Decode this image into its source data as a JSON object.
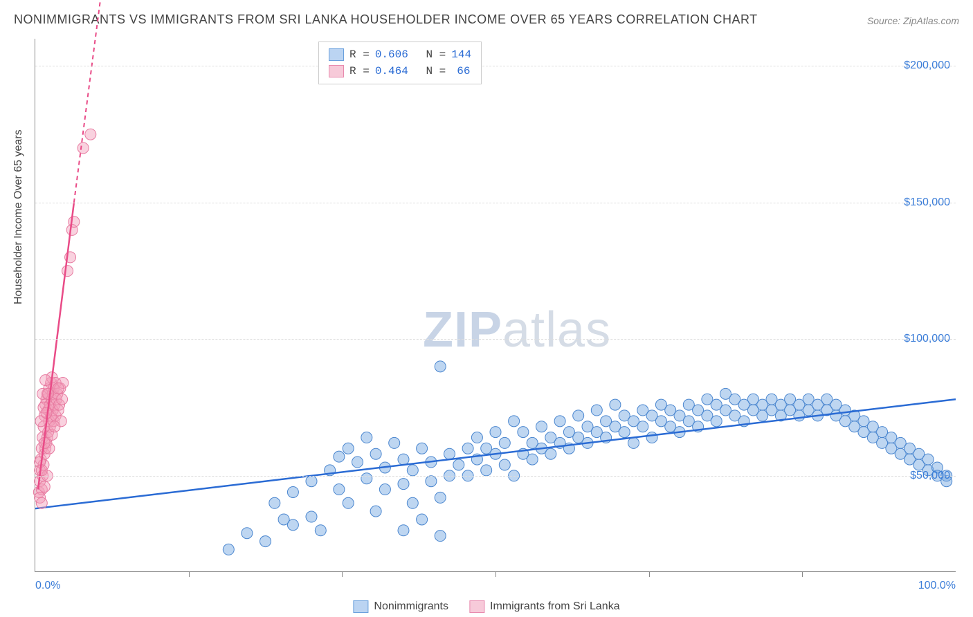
{
  "title": "NONIMMIGRANTS VS IMMIGRANTS FROM SRI LANKA HOUSEHOLDER INCOME OVER 65 YEARS CORRELATION CHART",
  "source": "Source: ZipAtlas.com",
  "watermark_a": "ZIP",
  "watermark_b": "atlas",
  "ylabel": "Householder Income Over 65 years",
  "chart": {
    "type": "scatter",
    "xlim": [
      0,
      100
    ],
    "ylim": [
      15000,
      210000
    ],
    "x_ticks": [
      0,
      100
    ],
    "x_tick_labels": [
      "0.0%",
      "100.0%"
    ],
    "x_minor_ticks": [
      16.67,
      33.33,
      50,
      66.67,
      83.33
    ],
    "y_ticks": [
      50000,
      100000,
      150000,
      200000
    ],
    "y_tick_labels": [
      "$50,000",
      "$100,000",
      "$150,000",
      "$200,000"
    ],
    "background_color": "#ffffff",
    "grid_color": "#dddddd",
    "axis_color": "#888888",
    "marker_radius": 8,
    "marker_alpha": 0.45,
    "series": [
      {
        "name": "Nonimmigrants",
        "color": "#6fa3e0",
        "stroke": "#4a86cf",
        "line_color": "#2a6bd4",
        "line_dash": "none",
        "R": "0.606",
        "N": "144",
        "trend": {
          "x1": 0,
          "y1": 38000,
          "x2": 100,
          "y2": 78000
        },
        "points": [
          [
            21,
            23000
          ],
          [
            23,
            29000
          ],
          [
            25,
            26000
          ],
          [
            26,
            40000
          ],
          [
            27,
            34000
          ],
          [
            28,
            32000
          ],
          [
            28,
            44000
          ],
          [
            30,
            35000
          ],
          [
            30,
            48000
          ],
          [
            31,
            30000
          ],
          [
            32,
            52000
          ],
          [
            33,
            45000
          ],
          [
            33,
            57000
          ],
          [
            34,
            40000
          ],
          [
            34,
            60000
          ],
          [
            35,
            55000
          ],
          [
            36,
            49000
          ],
          [
            36,
            64000
          ],
          [
            37,
            37000
          ],
          [
            37,
            58000
          ],
          [
            38,
            45000
          ],
          [
            38,
            53000
          ],
          [
            39,
            62000
          ],
          [
            40,
            30000
          ],
          [
            40,
            47000
          ],
          [
            40,
            56000
          ],
          [
            41,
            40000
          ],
          [
            41,
            52000
          ],
          [
            42,
            34000
          ],
          [
            42,
            60000
          ],
          [
            43,
            48000
          ],
          [
            43,
            55000
          ],
          [
            44,
            28000
          ],
          [
            44,
            42000
          ],
          [
            44,
            90000
          ],
          [
            45,
            50000
          ],
          [
            45,
            58000
          ],
          [
            46,
            54000
          ],
          [
            47,
            60000
          ],
          [
            47,
            50000
          ],
          [
            48,
            56000
          ],
          [
            48,
            64000
          ],
          [
            49,
            52000
          ],
          [
            49,
            60000
          ],
          [
            50,
            58000
          ],
          [
            50,
            66000
          ],
          [
            51,
            54000
          ],
          [
            51,
            62000
          ],
          [
            52,
            50000
          ],
          [
            52,
            70000
          ],
          [
            53,
            58000
          ],
          [
            53,
            66000
          ],
          [
            54,
            62000
          ],
          [
            54,
            56000
          ],
          [
            55,
            60000
          ],
          [
            55,
            68000
          ],
          [
            56,
            64000
          ],
          [
            56,
            58000
          ],
          [
            57,
            62000
          ],
          [
            57,
            70000
          ],
          [
            58,
            66000
          ],
          [
            58,
            60000
          ],
          [
            59,
            64000
          ],
          [
            59,
            72000
          ],
          [
            60,
            68000
          ],
          [
            60,
            62000
          ],
          [
            61,
            66000
          ],
          [
            61,
            74000
          ],
          [
            62,
            70000
          ],
          [
            62,
            64000
          ],
          [
            63,
            68000
          ],
          [
            63,
            76000
          ],
          [
            64,
            72000
          ],
          [
            64,
            66000
          ],
          [
            65,
            70000
          ],
          [
            65,
            62000
          ],
          [
            66,
            74000
          ],
          [
            66,
            68000
          ],
          [
            67,
            72000
          ],
          [
            67,
            64000
          ],
          [
            68,
            70000
          ],
          [
            68,
            76000
          ],
          [
            69,
            74000
          ],
          [
            69,
            68000
          ],
          [
            70,
            72000
          ],
          [
            70,
            66000
          ],
          [
            71,
            76000
          ],
          [
            71,
            70000
          ],
          [
            72,
            74000
          ],
          [
            72,
            68000
          ],
          [
            73,
            78000
          ],
          [
            73,
            72000
          ],
          [
            74,
            76000
          ],
          [
            74,
            70000
          ],
          [
            75,
            74000
          ],
          [
            75,
            80000
          ],
          [
            76,
            72000
          ],
          [
            76,
            78000
          ],
          [
            77,
            76000
          ],
          [
            77,
            70000
          ],
          [
            78,
            74000
          ],
          [
            78,
            78000
          ],
          [
            79,
            72000
          ],
          [
            79,
            76000
          ],
          [
            80,
            74000
          ],
          [
            80,
            78000
          ],
          [
            81,
            72000
          ],
          [
            81,
            76000
          ],
          [
            82,
            74000
          ],
          [
            82,
            78000
          ],
          [
            83,
            72000
          ],
          [
            83,
            76000
          ],
          [
            84,
            74000
          ],
          [
            84,
            78000
          ],
          [
            85,
            76000
          ],
          [
            85,
            72000
          ],
          [
            86,
            74000
          ],
          [
            86,
            78000
          ],
          [
            87,
            76000
          ],
          [
            87,
            72000
          ],
          [
            88,
            74000
          ],
          [
            88,
            70000
          ],
          [
            89,
            72000
          ],
          [
            89,
            68000
          ],
          [
            90,
            70000
          ],
          [
            90,
            66000
          ],
          [
            91,
            68000
          ],
          [
            91,
            64000
          ],
          [
            92,
            66000
          ],
          [
            92,
            62000
          ],
          [
            93,
            64000
          ],
          [
            93,
            60000
          ],
          [
            94,
            62000
          ],
          [
            94,
            58000
          ],
          [
            95,
            60000
          ],
          [
            95,
            56000
          ],
          [
            96,
            58000
          ],
          [
            96,
            54000
          ],
          [
            97,
            56000
          ],
          [
            97,
            52000
          ],
          [
            98,
            53000
          ],
          [
            98,
            50000
          ],
          [
            99,
            50000
          ],
          [
            99,
            48000
          ]
        ]
      },
      {
        "name": "Immigrants from Sri Lanka",
        "color": "#f29bb7",
        "stroke": "#e77aa0",
        "line_color": "#e94b87",
        "line_dash": "6,5",
        "R": "0.464",
        "N": "66",
        "trend_solid": {
          "x1": 0.3,
          "y1": 45000,
          "x2": 4.2,
          "y2": 150000
        },
        "trend_dash": {
          "x1": 4.2,
          "y1": 150000,
          "x2": 10,
          "y2": 300000
        },
        "points": [
          [
            0.4,
            44000
          ],
          [
            0.5,
            48000
          ],
          [
            0.5,
            52000
          ],
          [
            0.6,
            56000
          ],
          [
            0.7,
            60000
          ],
          [
            0.7,
            45000
          ],
          [
            0.8,
            64000
          ],
          [
            0.8,
            50000
          ],
          [
            0.9,
            68000
          ],
          [
            0.9,
            54000
          ],
          [
            1.0,
            72000
          ],
          [
            1.0,
            58000
          ],
          [
            1.1,
            76000
          ],
          [
            1.1,
            60000
          ],
          [
            1.2,
            78000
          ],
          [
            1.2,
            62000
          ],
          [
            1.3,
            80000
          ],
          [
            1.3,
            64000
          ],
          [
            1.4,
            74000
          ],
          [
            1.4,
            66000
          ],
          [
            1.5,
            70000
          ],
          [
            1.5,
            82000
          ],
          [
            1.6,
            76000
          ],
          [
            1.6,
            68000
          ],
          [
            1.7,
            84000
          ],
          [
            1.7,
            72000
          ],
          [
            1.8,
            78000
          ],
          [
            1.8,
            86000
          ],
          [
            1.9,
            74000
          ],
          [
            1.9,
            80000
          ],
          [
            2.0,
            70000
          ],
          [
            2.0,
            82000
          ],
          [
            2.1,
            76000
          ],
          [
            2.2,
            84000
          ],
          [
            2.2,
            72000
          ],
          [
            2.3,
            78000
          ],
          [
            2.4,
            80000
          ],
          [
            2.5,
            74000
          ],
          [
            2.6,
            76000
          ],
          [
            2.7,
            82000
          ],
          [
            2.8,
            70000
          ],
          [
            2.9,
            78000
          ],
          [
            3.0,
            84000
          ],
          [
            0.5,
            42000
          ],
          [
            0.7,
            40000
          ],
          [
            1.0,
            46000
          ],
          [
            1.3,
            50000
          ],
          [
            0.6,
            70000
          ],
          [
            0.9,
            75000
          ],
          [
            1.2,
            73000
          ],
          [
            1.5,
            60000
          ],
          [
            1.8,
            65000
          ],
          [
            2.1,
            68000
          ],
          [
            2.5,
            82000
          ],
          [
            0.8,
            80000
          ],
          [
            1.1,
            85000
          ],
          [
            1.4,
            80000
          ],
          [
            3.5,
            125000
          ],
          [
            3.8,
            130000
          ],
          [
            4.0,
            140000
          ],
          [
            4.2,
            143000
          ],
          [
            5.2,
            170000
          ],
          [
            6.0,
            175000
          ],
          [
            0.5,
            55000
          ],
          [
            0.7,
            52000
          ],
          [
            1.0,
            62000
          ]
        ]
      }
    ]
  },
  "legend_bottom": {
    "a": "Nonimmigrants",
    "b": "Immigrants from Sri Lanka"
  }
}
